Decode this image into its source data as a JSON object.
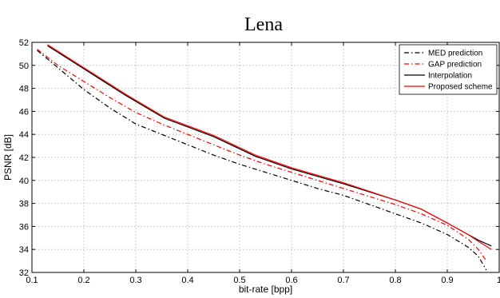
{
  "chart_data": {
    "type": "line",
    "title": "Lena",
    "xlabel": "bit-rate [bpp]",
    "ylabel": "PSNR [dB]",
    "xlim": [
      0.1,
      1.0
    ],
    "ylim": [
      32,
      52
    ],
    "xticks": [
      "0.1",
      "0.2",
      "0.3",
      "0.4",
      "0.5",
      "0.6",
      "0.7",
      "0.8",
      "0.9",
      "1"
    ],
    "yticks": [
      "32",
      "34",
      "36",
      "38",
      "40",
      "42",
      "44",
      "46",
      "48",
      "50",
      "52"
    ],
    "grid": true,
    "legend_position": "top-right",
    "series": [
      {
        "name": "MED prediction",
        "color": "#000000",
        "style": "dashdot",
        "points": [
          [
            0.11,
            51.3
          ],
          [
            0.15,
            49.8
          ],
          [
            0.2,
            47.9
          ],
          [
            0.25,
            46.3
          ],
          [
            0.3,
            44.9
          ],
          [
            0.35,
            44.0
          ],
          [
            0.4,
            43.1
          ],
          [
            0.45,
            42.2
          ],
          [
            0.5,
            41.4
          ],
          [
            0.55,
            40.7
          ],
          [
            0.6,
            40.0
          ],
          [
            0.65,
            39.3
          ],
          [
            0.7,
            38.7
          ],
          [
            0.75,
            37.9
          ],
          [
            0.8,
            37.1
          ],
          [
            0.85,
            36.3
          ],
          [
            0.9,
            35.3
          ],
          [
            0.94,
            34.2
          ],
          [
            0.96,
            33.4
          ],
          [
            0.975,
            32.2
          ]
        ]
      },
      {
        "name": "GAP prediction",
        "color": "#ff0000",
        "style": "dashdot",
        "points": [
          [
            0.11,
            51.4
          ],
          [
            0.15,
            50.0
          ],
          [
            0.2,
            48.6
          ],
          [
            0.25,
            47.2
          ],
          [
            0.3,
            45.9
          ],
          [
            0.35,
            44.9
          ],
          [
            0.4,
            44.0
          ],
          [
            0.45,
            43.1
          ],
          [
            0.5,
            42.2
          ],
          [
            0.55,
            41.4
          ],
          [
            0.6,
            40.7
          ],
          [
            0.65,
            40.0
          ],
          [
            0.7,
            39.3
          ],
          [
            0.75,
            38.6
          ],
          [
            0.8,
            37.9
          ],
          [
            0.85,
            37.1
          ],
          [
            0.9,
            36.1
          ],
          [
            0.94,
            34.9
          ],
          [
            0.96,
            34.0
          ],
          [
            0.975,
            33.0
          ]
        ]
      },
      {
        "name": "Interpolation",
        "color": "#000000",
        "style": "solid",
        "points": [
          [
            0.13,
            51.7
          ],
          [
            0.2,
            49.7
          ],
          [
            0.28,
            47.4
          ],
          [
            0.355,
            45.4
          ],
          [
            0.45,
            43.8
          ],
          [
            0.53,
            42.1
          ],
          [
            0.6,
            41.0
          ],
          [
            0.7,
            39.7
          ],
          [
            0.8,
            38.3
          ],
          [
            0.85,
            37.5
          ],
          [
            0.9,
            36.3
          ],
          [
            0.94,
            35.3
          ],
          [
            0.96,
            34.8
          ],
          [
            0.985,
            34.3
          ]
        ]
      },
      {
        "name": "Proposed scheme",
        "color": "#ff0000",
        "style": "solid",
        "points": [
          [
            0.13,
            51.8
          ],
          [
            0.2,
            49.8
          ],
          [
            0.28,
            47.5
          ],
          [
            0.355,
            45.5
          ],
          [
            0.45,
            43.9
          ],
          [
            0.53,
            42.2
          ],
          [
            0.6,
            41.1
          ],
          [
            0.7,
            39.8
          ],
          [
            0.8,
            38.3
          ],
          [
            0.85,
            37.5
          ],
          [
            0.9,
            36.3
          ],
          [
            0.94,
            35.3
          ],
          [
            0.96,
            34.7
          ],
          [
            0.985,
            34.0
          ]
        ]
      }
    ]
  }
}
